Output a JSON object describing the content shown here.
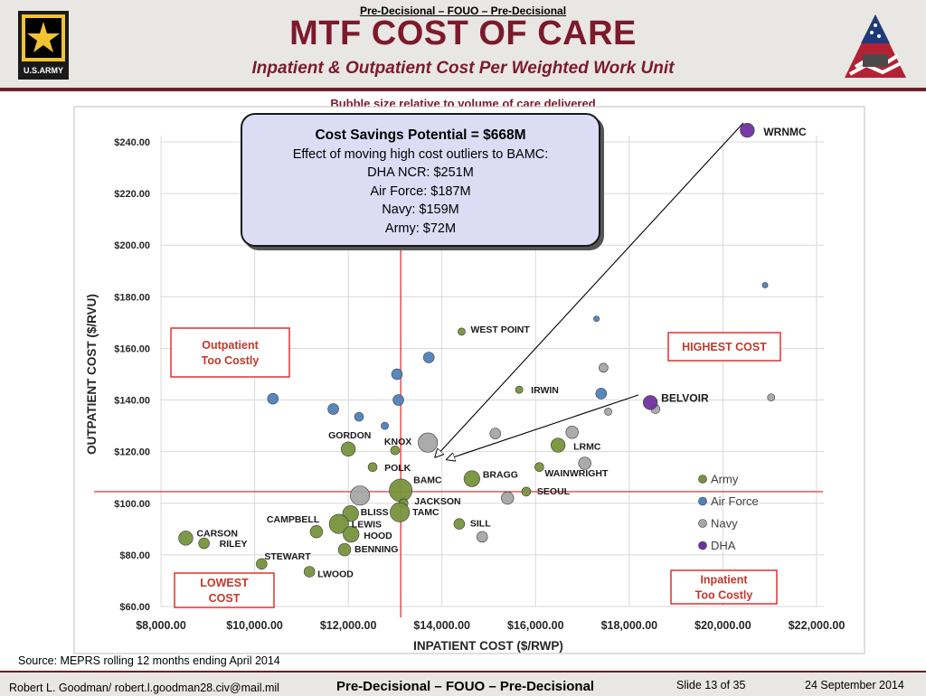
{
  "header": {
    "classification": "Pre-Decisional – FOUO – Pre-Decisional",
    "title": "MTF COST OF CARE",
    "subtitle": "Inpatient & Outpatient Cost Per Weighted Work Unit",
    "army_logo_text": "U.S.ARMY"
  },
  "note": "Bubble size relative to volume of care delivered",
  "callout": {
    "title": "Cost Savings Potential = $668M",
    "lines": [
      "Effect of moving high cost outliers to BAMC:",
      "DHA NCR: $251M",
      "Air Force: $187M",
      "Navy: $159M",
      "Army: $72M"
    ]
  },
  "source": "Source: MEPRS rolling 12 months ending  April 2014",
  "footer": {
    "author": "Robert L. Goodman/ robert.l.goodman28.civ@mail.mil",
    "classification": "Pre-Decisional – FOUO – Pre-Decisional",
    "slide": "Slide 13 of 35",
    "date": "24 September 2014"
  },
  "colors": {
    "army": "#77933c",
    "air_force": "#4f81bd",
    "navy": "#a6a6a6",
    "dha": "#7030a0",
    "title": "#7c1a2c",
    "quadrant_box": "#e03030",
    "reference_line": "#e02020"
  },
  "chart_data": {
    "type": "scatter",
    "bubble": true,
    "title": "",
    "xlabel": "INPATIENT COST ($/RWP)",
    "ylabel": "OUTPATIENT COST ($/RVU)",
    "xlim": [
      8000,
      22000
    ],
    "ylim": [
      60,
      245
    ],
    "x_ticks": [
      8000,
      10000,
      12000,
      14000,
      16000,
      18000,
      20000,
      22000
    ],
    "x_tick_labels": [
      "$8,000.00",
      "$10,000.00",
      "$12,000.00",
      "$14,000.00",
      "$16,000.00",
      "$18,000.00",
      "$20,000.00",
      "$22,000.00"
    ],
    "y_ticks": [
      60,
      80,
      100,
      120,
      140,
      160,
      180,
      200,
      220,
      240
    ],
    "y_tick_labels": [
      "$60.00",
      "$80.00",
      "$100.00",
      "$120.00",
      "$140.00",
      "$160.00",
      "$180.00",
      "$200.00",
      "$220.00",
      "$240.00"
    ],
    "grid": true,
    "legend_position": "right",
    "reference_lines": {
      "x": 13120,
      "y": 104.5
    },
    "quadrant_labels": [
      {
        "text": [
          "Outpatient",
          "Too Costly"
        ],
        "color": "#c0392b",
        "position": "upper-left"
      },
      {
        "text": [
          "HIGHEST COST"
        ],
        "color": "#c0392b",
        "position": "upper-right"
      },
      {
        "text": [
          "LOWEST",
          "COST"
        ],
        "color": "#c0392b",
        "position": "lower-left"
      },
      {
        "text": [
          "Inpatient",
          "Too Costly"
        ],
        "color": "#c0392b",
        "position": "lower-right"
      }
    ],
    "series": [
      {
        "name": "Army",
        "color": "#77933c",
        "points": [
          {
            "label": "WEST POINT",
            "x": 14420,
            "y": 166.5,
            "size": 3
          },
          {
            "label": "IRWIN",
            "x": 15650,
            "y": 144,
            "size": 3
          },
          {
            "label": "GORDON",
            "x": 12000,
            "y": 121,
            "size": 7
          },
          {
            "label": "KNOX",
            "x": 13000,
            "y": 120.5,
            "size": 4
          },
          {
            "label": "POLK",
            "x": 12520,
            "y": 114,
            "size": 4
          },
          {
            "label": "LRMC",
            "x": 16480,
            "y": 122.5,
            "size": 7
          },
          {
            "label": "BRAGG",
            "x": 14640,
            "y": 109.5,
            "size": 8
          },
          {
            "label": "WAINWRIGHT",
            "x": 16080,
            "y": 114,
            "size": 4
          },
          {
            "label": "SEOUL",
            "x": 15800,
            "y": 104.5,
            "size": 4
          },
          {
            "label": "BAMC",
            "x": 13120,
            "y": 105,
            "size": 12
          },
          {
            "label": "JACKSON",
            "x": 13180,
            "y": 100,
            "size": 4
          },
          {
            "label": "BLISS",
            "x": 12050,
            "y": 96,
            "size": 8
          },
          {
            "label": "TAMC",
            "x": 13100,
            "y": 96.5,
            "size": 10
          },
          {
            "label": "CAMPBELL",
            "x": 11320,
            "y": 89,
            "size": 6
          },
          {
            "label": "LEWIS",
            "x": 11800,
            "y": 92,
            "size": 10
          },
          {
            "label": "HOOD",
            "x": 12060,
            "y": 88,
            "size": 8
          },
          {
            "label": "SILL",
            "x": 14370,
            "y": 92,
            "size": 5
          },
          {
            "label": "BENNING",
            "x": 11920,
            "y": 82,
            "size": 6
          },
          {
            "label": "CARSON",
            "x": 8530,
            "y": 86.5,
            "size": 7
          },
          {
            "label": "RILEY",
            "x": 8920,
            "y": 84.5,
            "size": 5
          },
          {
            "label": "STEWART",
            "x": 10150,
            "y": 76.5,
            "size": 5
          },
          {
            "label": "LWOOD",
            "x": 11170,
            "y": 73.5,
            "size": 5
          }
        ]
      },
      {
        "name": "Air Force",
        "color": "#4f81bd",
        "points": [
          {
            "x": 10390,
            "y": 140.5,
            "size": 5
          },
          {
            "x": 11680,
            "y": 136.5,
            "size": 5
          },
          {
            "x": 12230,
            "y": 133.5,
            "size": 4
          },
          {
            "x": 12780,
            "y": 130,
            "size": 3
          },
          {
            "x": 13040,
            "y": 150,
            "size": 5
          },
          {
            "x": 13070,
            "y": 140,
            "size": 5
          },
          {
            "x": 13720,
            "y": 156.5,
            "size": 5
          },
          {
            "x": 17400,
            "y": 142.5,
            "size": 5
          },
          {
            "x": 17300,
            "y": 171.5,
            "size": 2
          },
          {
            "x": 20900,
            "y": 184.5,
            "size": 2
          }
        ]
      },
      {
        "name": "Navy",
        "color": "#a6a6a6",
        "points": [
          {
            "x": 12250,
            "y": 103,
            "size": 10
          },
          {
            "x": 13700,
            "y": 123.5,
            "size": 10
          },
          {
            "x": 15140,
            "y": 127,
            "size": 5
          },
          {
            "x": 15400,
            "y": 102,
            "size": 6
          },
          {
            "x": 14860,
            "y": 87,
            "size": 5
          },
          {
            "x": 16780,
            "y": 127.5,
            "size": 6
          },
          {
            "x": 17050,
            "y": 115.5,
            "size": 6
          },
          {
            "x": 17450,
            "y": 152.5,
            "size": 4
          },
          {
            "x": 17550,
            "y": 135.5,
            "size": 3
          },
          {
            "x": 18560,
            "y": 136.5,
            "size": 4
          },
          {
            "x": 21030,
            "y": 141,
            "size": 3
          }
        ]
      },
      {
        "name": "DHA",
        "color": "#7030a0",
        "points": [
          {
            "label": "WRNMC",
            "x": 20520,
            "y": 244.5,
            "size": 7
          },
          {
            "label": "BELVOIR",
            "x": 18450,
            "y": 139,
            "size": 7
          }
        ]
      }
    ]
  }
}
